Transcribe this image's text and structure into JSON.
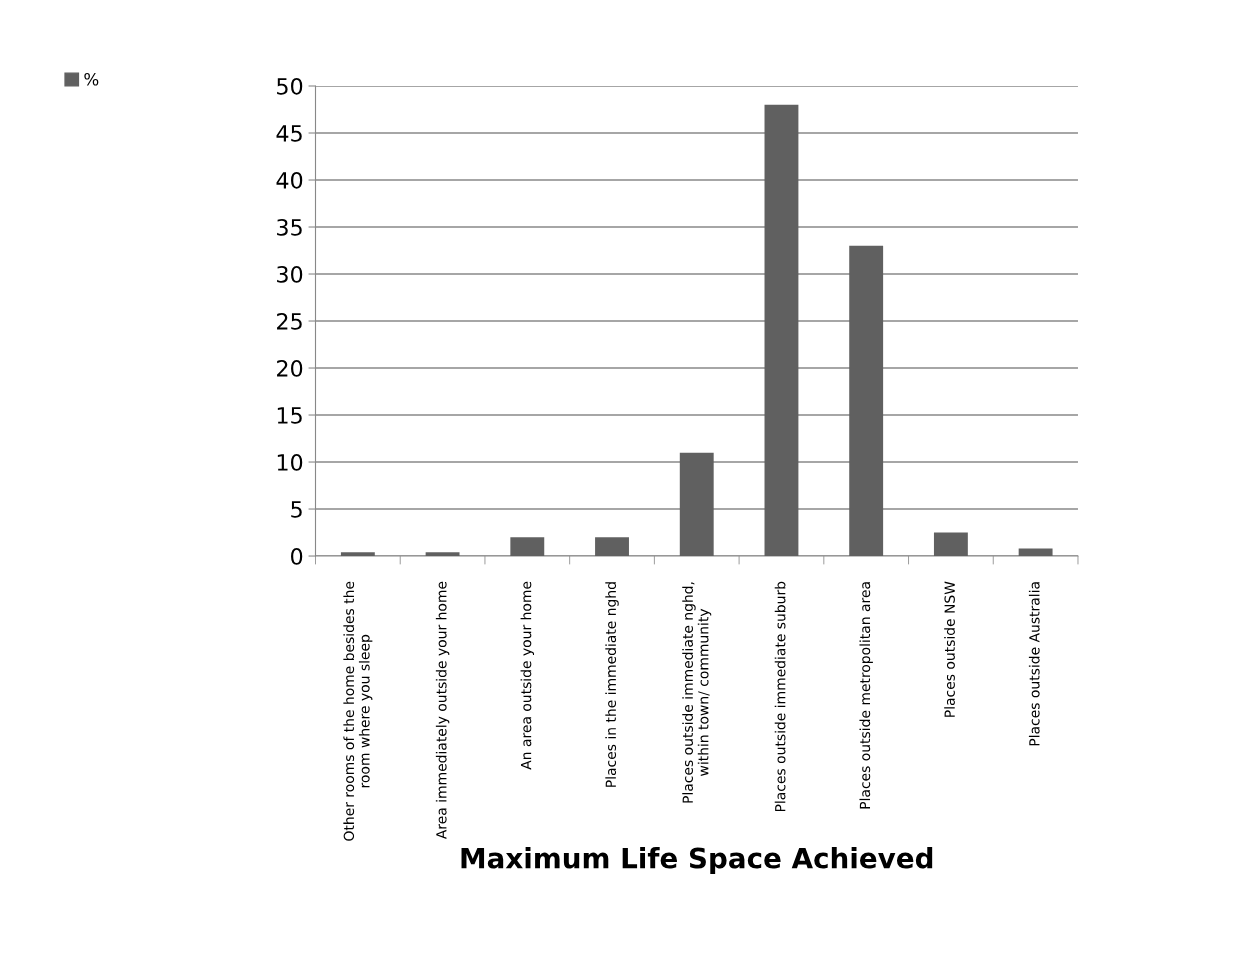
{
  "chart_data": {
    "type": "bar",
    "xlabel": "Maximum Life Space Achieved",
    "categories": [
      "Other rooms of the home besides the room where you sleep",
      "Area immediately outside your home",
      "An area outside your home",
      "Places in the immediate nghd",
      "Places outside immediate nghd, within town/ community",
      "Places outside immediate suburb",
      "Places outside metropolitan area",
      "Places outside NSW",
      "Places outside Australia"
    ],
    "series": [
      {
        "name": "%",
        "color": "#606060",
        "values": [
          0.4,
          0.4,
          2,
          2,
          11,
          48,
          33,
          2.5,
          0.8
        ]
      }
    ],
    "ylim": [
      0,
      50
    ],
    "yticks": [
      0,
      5,
      10,
      15,
      20,
      25,
      30,
      35,
      40,
      45,
      50
    ],
    "grid": "y",
    "legend": "top left"
  }
}
